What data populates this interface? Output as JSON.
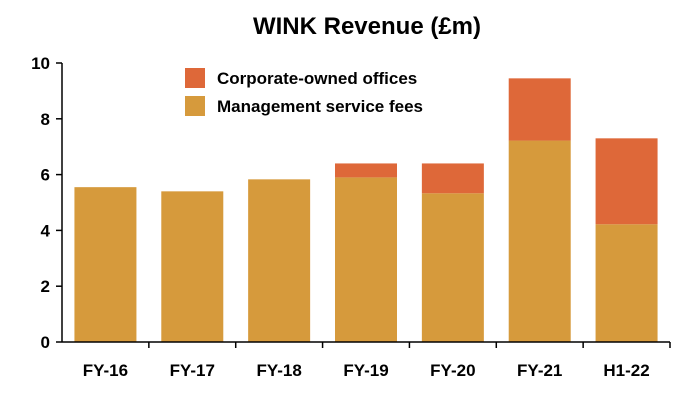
{
  "chart_data": {
    "type": "bar",
    "stacked": true,
    "title": "WINK Revenue (£m)",
    "xlabel": "",
    "ylabel": "",
    "categories": [
      "FY-16",
      "FY-17",
      "FY-18",
      "FY-19",
      "FY-20",
      "FY-21",
      "H1-22"
    ],
    "series": [
      {
        "name": "Management service fees",
        "color": "#D69A3C",
        "values": [
          5.55,
          5.4,
          5.83,
          5.9,
          5.33,
          7.22,
          4.22
        ]
      },
      {
        "name": "Corporate-owned offices",
        "color": "#DE6839",
        "values": [
          0,
          0,
          0,
          0.5,
          1.07,
          2.23,
          3.08
        ]
      }
    ],
    "ylim": [
      0,
      10
    ],
    "yticks": [
      0,
      2,
      4,
      6,
      8,
      10
    ],
    "grid": false,
    "legend": {
      "placement": "top-center",
      "order": [
        "Corporate-owned offices",
        "Management service fees"
      ]
    }
  }
}
